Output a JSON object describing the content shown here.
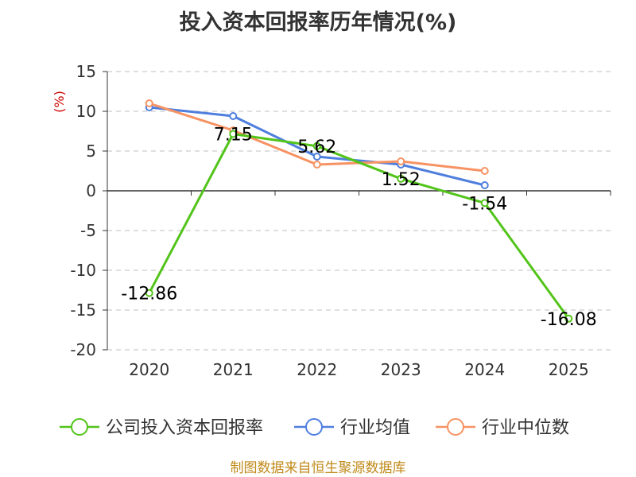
{
  "chart_data": {
    "type": "line",
    "title": "投入资本回报率历年情况(%)",
    "ylabel": "(%)",
    "xlabel": "",
    "ylim": [
      -20,
      15
    ],
    "yticks": [
      15,
      10,
      5,
      0,
      -5,
      -10,
      -15,
      -20
    ],
    "categories": [
      "2020",
      "2021",
      "2022",
      "2023",
      "2024",
      "2025"
    ],
    "grid": true,
    "legend_position": "bottom",
    "series": [
      {
        "name": "公司投入资本回报率",
        "color": "#52c41a",
        "values": [
          -12.86,
          7.15,
          5.62,
          1.52,
          -1.54,
          -16.08
        ],
        "labels": [
          "-12.86",
          "7.15",
          "5.62",
          "1.52",
          "-1.54",
          "-16.08"
        ]
      },
      {
        "name": "行业均值",
        "color": "#4f7fde",
        "values": [
          10.5,
          9.4,
          4.3,
          3.3,
          0.7,
          null
        ]
      },
      {
        "name": "行业中位数",
        "color": "#f79263",
        "values": [
          11.0,
          7.6,
          3.3,
          3.7,
          2.5,
          null
        ]
      }
    ]
  },
  "footer": {
    "source": "制图数据来自恒生聚源数据库"
  }
}
